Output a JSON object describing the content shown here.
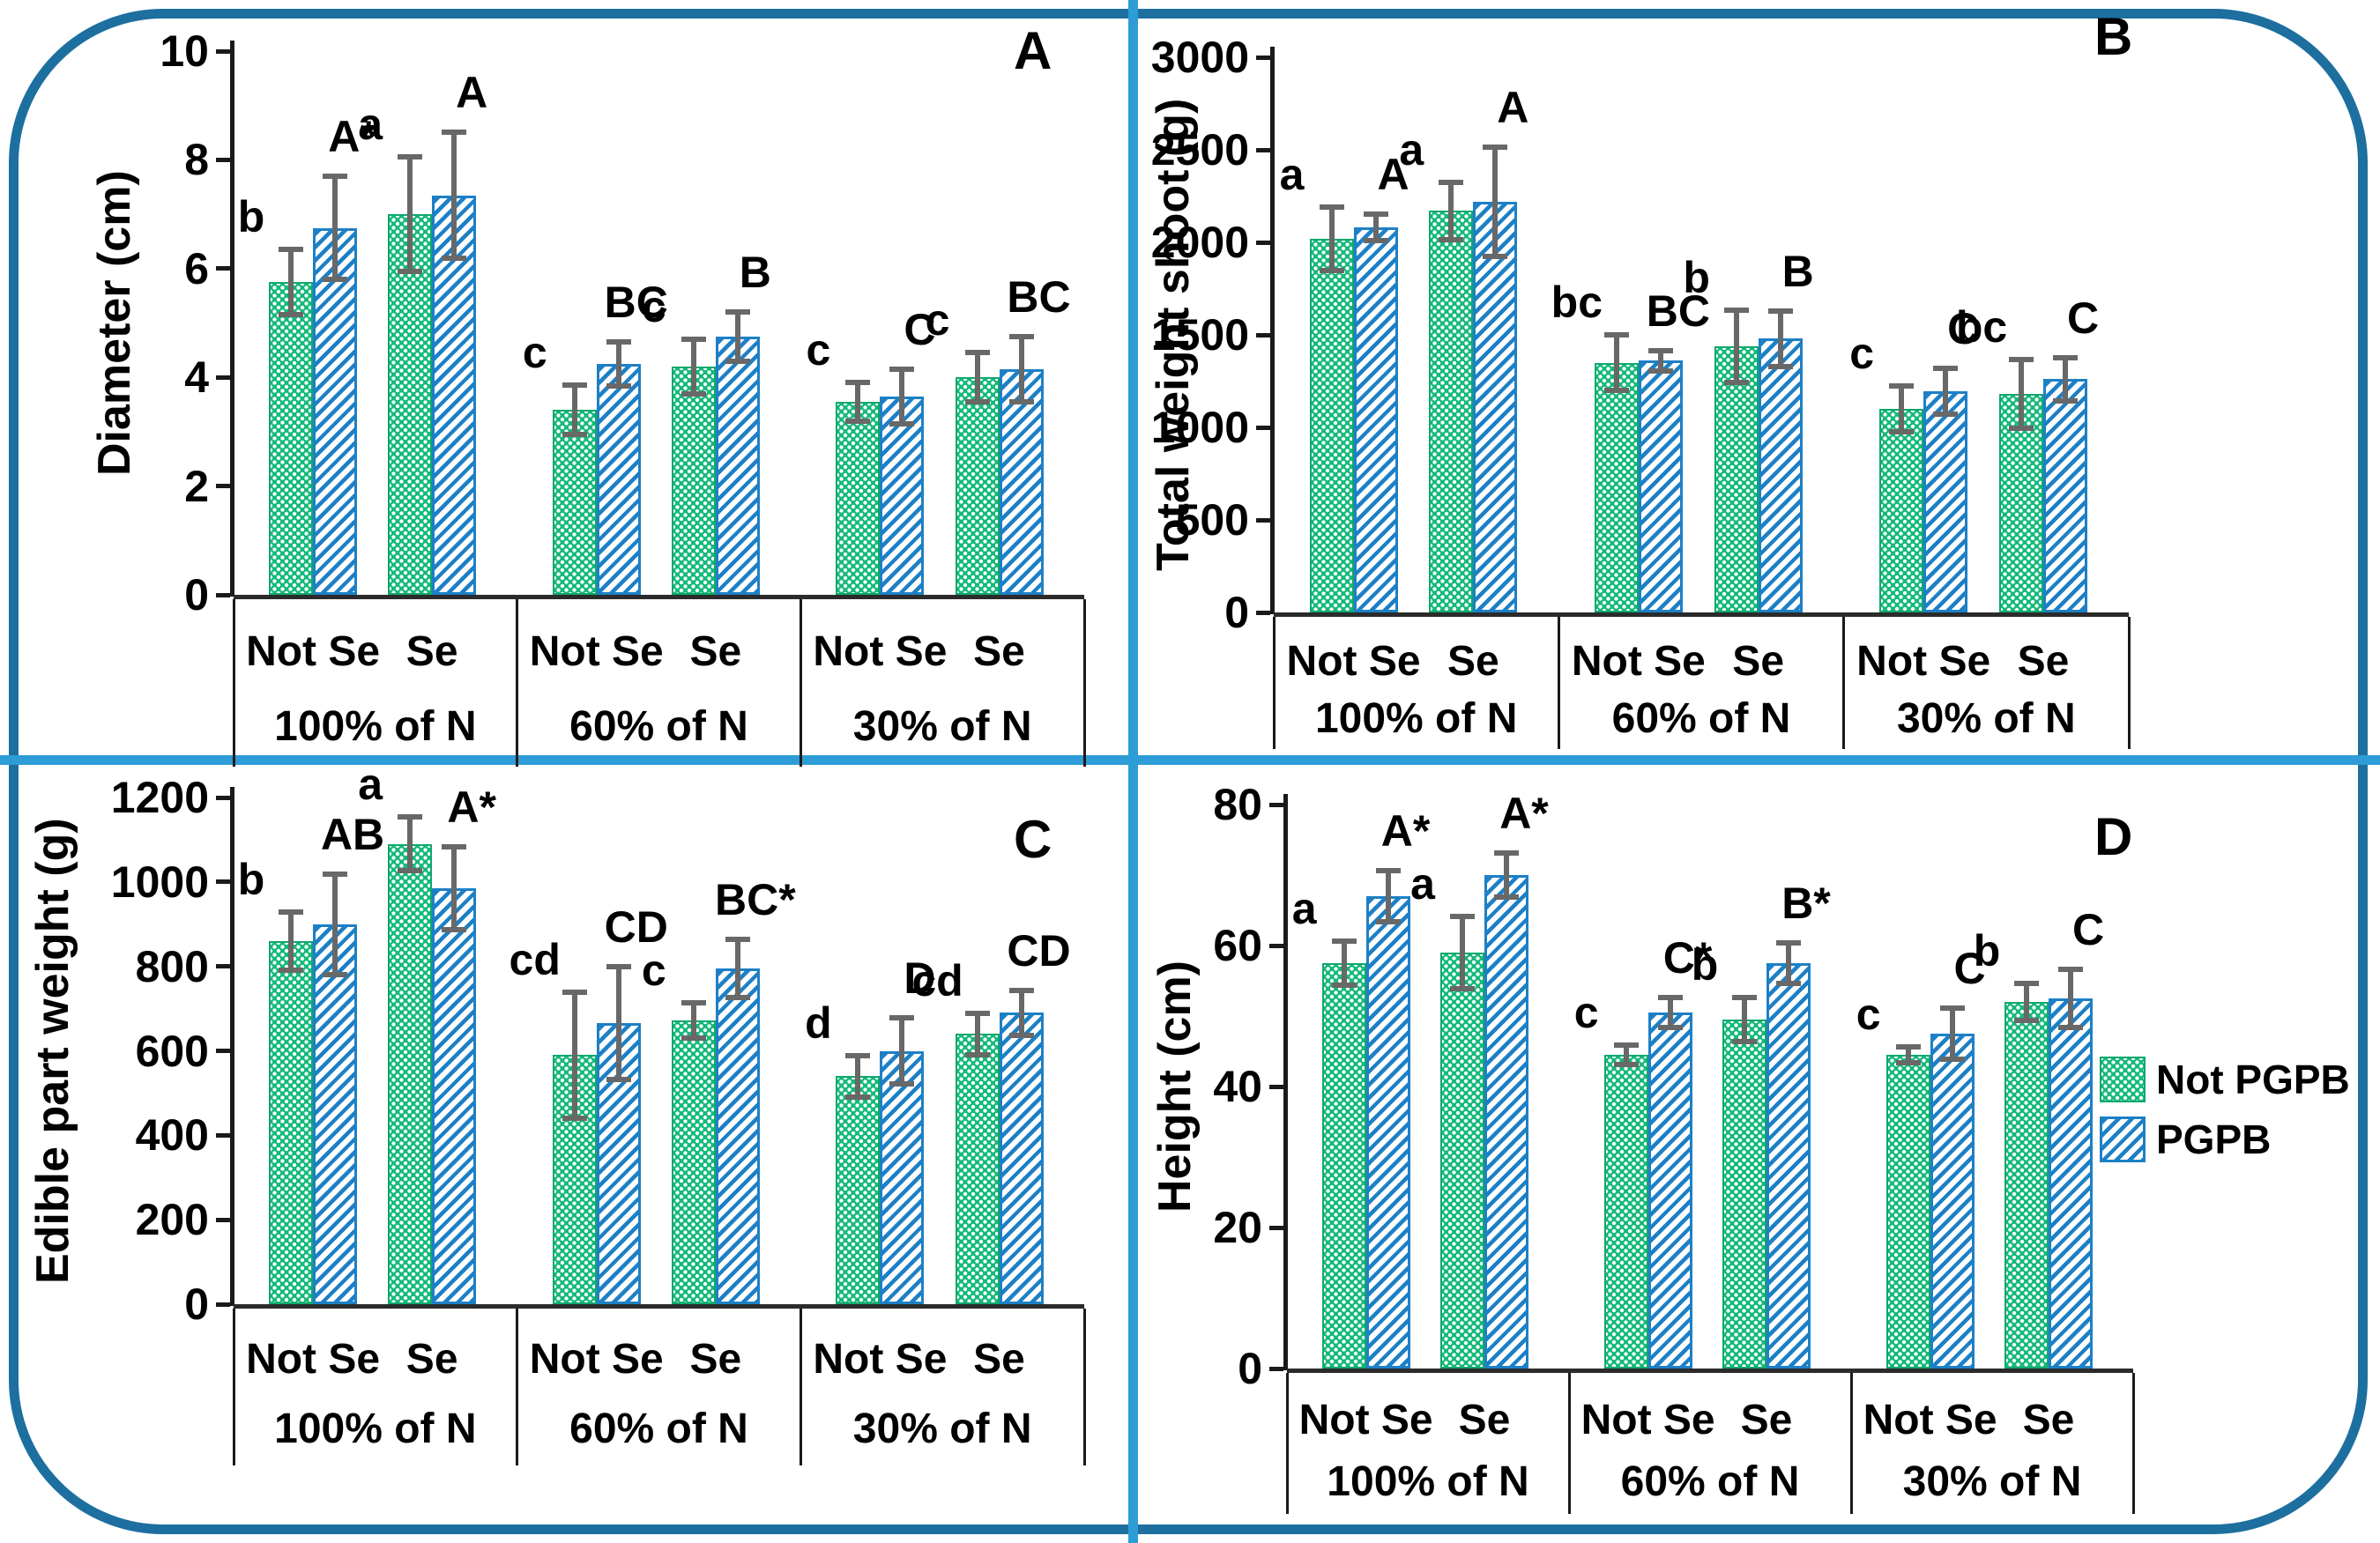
{
  "figure": {
    "colors": {
      "not_pgpb_green": "#14b97a",
      "pgpb_blue": "#1d80c6",
      "error_bar_gray": "#686868",
      "outer_border_blue": "#1d6f9f",
      "divider_blue": "#2e9cd6"
    },
    "legend": {
      "items": [
        {
          "label": "Not PGPB",
          "swatch": "green-dotted"
        },
        {
          "label": "PGPB",
          "swatch": "blue-striped"
        }
      ]
    }
  },
  "chart_data": [
    {
      "id": "A",
      "type": "bar",
      "panel_label": "A",
      "ylabel": "Diameter (cm)",
      "ylim": [
        0,
        10
      ],
      "yticks": [
        0,
        2,
        4,
        6,
        8,
        10
      ],
      "groups": [
        "100% of N",
        "60% of N",
        "30% of N"
      ],
      "subgroups": [
        "Not Se",
        "Se"
      ],
      "series": [
        {
          "name": "Not PGPB",
          "values": [
            5.75,
            7.0,
            3.4,
            4.2,
            3.55,
            4.0
          ],
          "errors": [
            0.65,
            1.1,
            0.5,
            0.55,
            0.4,
            0.5
          ],
          "letters": [
            "b",
            "a",
            "c",
            "c",
            "c",
            "c"
          ]
        },
        {
          "name": "PGPB",
          "values": [
            6.75,
            7.35,
            4.25,
            4.75,
            3.65,
            4.15
          ],
          "errors": [
            1.0,
            1.2,
            0.45,
            0.5,
            0.55,
            0.65
          ],
          "letters": [
            "A*",
            "A",
            "BC",
            "B",
            "C",
            "BC"
          ]
        }
      ]
    },
    {
      "id": "B",
      "type": "bar",
      "panel_label": "B",
      "ylabel": "Total weight shoot (g)",
      "ylim": [
        0,
        3000
      ],
      "yticks": [
        0,
        500,
        1000,
        1500,
        2000,
        2500,
        3000
      ],
      "groups": [
        "100% of N",
        "60% of N",
        "30% of N"
      ],
      "subgroups": [
        "Not Se",
        "Se"
      ],
      "series": [
        {
          "name": "Not PGPB",
          "values": [
            2020,
            2170,
            1350,
            1440,
            1100,
            1180
          ],
          "errors": [
            185,
            170,
            165,
            210,
            140,
            200
          ],
          "letters": [
            "a",
            "a",
            "bc",
            "b",
            "c",
            "bc"
          ]
        },
        {
          "name": "PGPB",
          "values": [
            2080,
            2220,
            1360,
            1480,
            1195,
            1260
          ],
          "errors": [
            85,
            310,
            70,
            165,
            140,
            130
          ],
          "letters": [
            "A",
            "A",
            "BC",
            "B",
            "C",
            "C"
          ]
        }
      ]
    },
    {
      "id": "C",
      "type": "bar",
      "panel_label": "C",
      "ylabel": "Edible part weight (g)",
      "ylim": [
        0,
        1200
      ],
      "yticks": [
        0,
        200,
        400,
        600,
        800,
        1000,
        1200
      ],
      "groups": [
        "100% of N",
        "60% of N",
        "30% of N"
      ],
      "subgroups": [
        "Not Se",
        "Se"
      ],
      "series": [
        {
          "name": "Not PGPB",
          "values": [
            860,
            1090,
            590,
            672,
            540,
            640
          ],
          "errors": [
            75,
            70,
            155,
            48,
            55,
            55
          ],
          "letters": [
            "b",
            "a",
            "cd",
            "c",
            "d",
            "cd"
          ]
        },
        {
          "name": "PGPB",
          "values": [
            900,
            985,
            665,
            795,
            600,
            690
          ],
          "errors": [
            125,
            105,
            140,
            75,
            85,
            60
          ],
          "letters": [
            "AB",
            "A*",
            "CD",
            "BC*",
            "D",
            "CD"
          ]
        }
      ]
    },
    {
      "id": "D",
      "type": "bar",
      "panel_label": "D",
      "ylabel": "Height (cm)",
      "ylim": [
        0,
        80
      ],
      "yticks": [
        0,
        20,
        40,
        60,
        80
      ],
      "groups": [
        "100% of N",
        "60% of N",
        "30% of N"
      ],
      "subgroups": [
        "Not Se",
        "Se"
      ],
      "series": [
        {
          "name": "Not PGPB",
          "values": [
            57.5,
            59,
            44.5,
            49.5,
            44.5,
            52
          ],
          "errors": [
            3.5,
            5.5,
            1.8,
            3.5,
            1.5,
            3
          ],
          "letters": [
            "a",
            "a",
            "c",
            "b",
            "c",
            "b"
          ]
        },
        {
          "name": "PGPB",
          "values": [
            67,
            70,
            50.5,
            57.5,
            47.5,
            52.5
          ],
          "errors": [
            4,
            3.5,
            2.5,
            3.2,
            4,
            4.5
          ],
          "letters": [
            "A*",
            "A*",
            "C*",
            "B*",
            "C",
            "C"
          ]
        }
      ]
    }
  ]
}
